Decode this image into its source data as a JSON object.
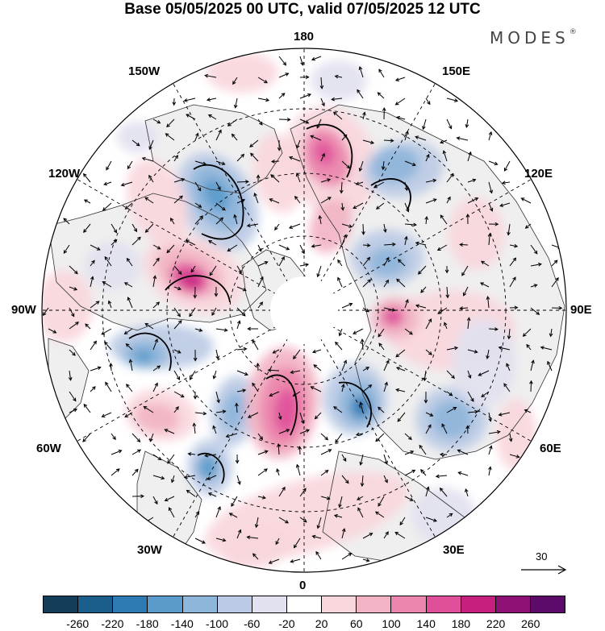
{
  "title": "Base 05/05/2025 00 UTC, valid 07/05/2025 12 UTC",
  "brand": {
    "text": "MODES",
    "mark": "®"
  },
  "longitude_labels": {
    "top": "180",
    "bottom": "0",
    "left": "90W",
    "right": "90E",
    "upper_left_1": "150W",
    "upper_left_2": "120W",
    "upper_right_1": "150E",
    "upper_right_2": "120E",
    "lower_left_1": "60W",
    "lower_left_2": "30W",
    "lower_right_1": "60E",
    "lower_right_2": "30E"
  },
  "reference_vector": {
    "label": "30"
  },
  "colorbar": {
    "ticks": [
      "-260",
      "-220",
      "-180",
      "-140",
      "-100",
      "-60",
      "-20",
      "20",
      "60",
      "100",
      "140",
      "180",
      "220",
      "260"
    ],
    "colors": [
      "#143d5a",
      "#1b5e8c",
      "#2e7bb4",
      "#5a9bcb",
      "#8eb5da",
      "#bccbe5",
      "#e2e1ef",
      "#ffffff",
      "#f8d7dc",
      "#f2b4c4",
      "#ec86ae",
      "#e0509a",
      "#c5207e",
      "#8e1075",
      "#5d0b6a"
    ]
  },
  "map": {
    "projection": "north-polar-stereographic",
    "land_color": "#efefef",
    "anomaly_field": "shaded anomaly with wind vectors"
  }
}
